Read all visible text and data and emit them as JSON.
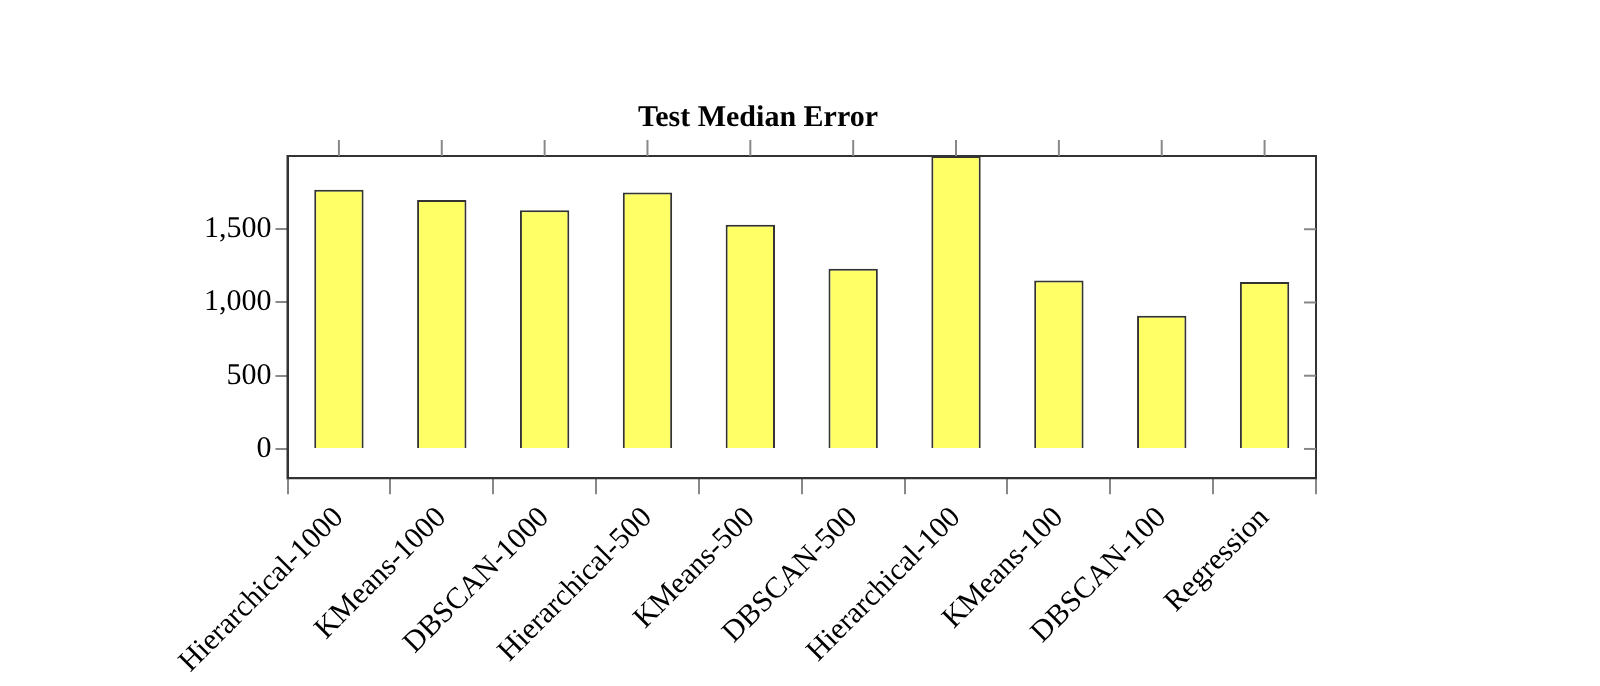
{
  "chart_data": {
    "type": "bar",
    "title": "Test Median Error",
    "categories": [
      "Hierarchical-1000",
      "KMeans-1000",
      "DBSCAN-1000",
      "Hierarchical-500",
      "KMeans-500",
      "DBSCAN-500",
      "Hierarchical-100",
      "KMeans-100",
      "DBSCAN-100",
      "Regression"
    ],
    "values": [
      1770,
      1700,
      1630,
      1750,
      1530,
      1230,
      2000,
      1150,
      910,
      1140
    ],
    "color": "#ffff66",
    "ylim": [
      -200,
      2000
    ],
    "yticks": [
      0,
      {
        "value": 500,
        "label": "500"
      },
      {
        "value": 1000,
        "label": "1,000"
      },
      {
        "value": 1500,
        "label": "1,500"
      }
    ],
    "grid": false,
    "legend": false
  }
}
